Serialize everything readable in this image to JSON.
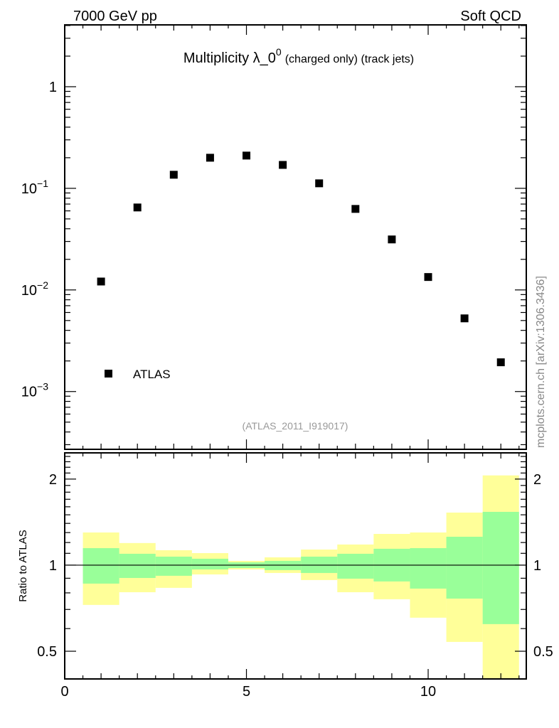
{
  "header": {
    "left": "7000 GeV pp",
    "right": "Soft QCD"
  },
  "watermark": "mcplots.cern.ch [arXiv:1306.3436]",
  "analysis_id": "(ATLAS_2011_I919017)",
  "chart_data": [
    {
      "type": "scatter",
      "title_main": "Multiplicity λ_0",
      "title_sup": "0",
      "title_sub": "(charged only) (track jets)",
      "yscale": "log",
      "xlim": [
        0,
        12.7
      ],
      "ylim": [
        0.00027,
        4.06
      ],
      "yticks": [
        {
          "v": 1,
          "label": "1",
          "exp": ""
        },
        {
          "v": 0.1,
          "label": "10",
          "exp": "−1"
        },
        {
          "v": 0.01,
          "label": "10",
          "exp": "−2"
        },
        {
          "v": 0.001,
          "label": "10",
          "exp": "−3"
        }
      ],
      "legend": [
        {
          "label": "ATLAS",
          "marker": "square",
          "color": "#000000"
        }
      ],
      "legend_position": "bottom-left",
      "series": [
        {
          "name": "ATLAS",
          "x": [
            1,
            2,
            3,
            4,
            5,
            6,
            7,
            8,
            9,
            10,
            11,
            12
          ],
          "y": [
            0.0121,
            0.0648,
            0.136,
            0.2,
            0.21,
            0.17,
            0.112,
            0.0627,
            0.0314,
            0.0134,
            0.00525,
            0.00194
          ]
        }
      ]
    },
    {
      "type": "area",
      "ylabel": "Ratio to ATLAS",
      "yscale": "log",
      "xlim": [
        0,
        12.7
      ],
      "ylim": [
        0.4,
        2.47
      ],
      "yticks": [
        {
          "v": 2,
          "label": "2"
        },
        {
          "v": 1,
          "label": "1"
        },
        {
          "v": 0.5,
          "label": "0.5"
        }
      ],
      "xticks": [
        {
          "v": 0,
          "label": "0"
        },
        {
          "v": 5,
          "label": "5"
        },
        {
          "v": 10,
          "label": "10"
        }
      ],
      "bins": [
        [
          0.5,
          1.5
        ],
        [
          1.5,
          2.5
        ],
        [
          2.5,
          3.5
        ],
        [
          3.5,
          4.5
        ],
        [
          4.5,
          5.5
        ],
        [
          5.5,
          6.5
        ],
        [
          6.5,
          7.5
        ],
        [
          7.5,
          8.5
        ],
        [
          8.5,
          9.5
        ],
        [
          9.5,
          10.5
        ],
        [
          10.5,
          11.5
        ],
        [
          11.5,
          12.5
        ]
      ],
      "band_outer": {
        "color": "#ffff99",
        "lo": [
          0.726,
          0.804,
          0.833,
          0.928,
          0.966,
          0.939,
          0.887,
          0.804,
          0.76,
          0.655,
          0.539,
          0.38
        ],
        "hi": [
          1.301,
          1.195,
          1.128,
          1.102,
          1.035,
          1.065,
          1.134,
          1.181,
          1.286,
          1.301,
          1.527,
          2.06
        ]
      },
      "band_inner": {
        "color": "#99ff99",
        "lo": [
          0.862,
          0.902,
          0.918,
          0.966,
          0.977,
          0.961,
          0.939,
          0.897,
          0.877,
          0.828,
          0.764,
          0.622
        ],
        "hi": [
          1.147,
          1.096,
          1.071,
          1.053,
          1.023,
          1.035,
          1.071,
          1.096,
          1.141,
          1.147,
          1.257,
          1.536
        ]
      },
      "reference_line": 1
    }
  ]
}
